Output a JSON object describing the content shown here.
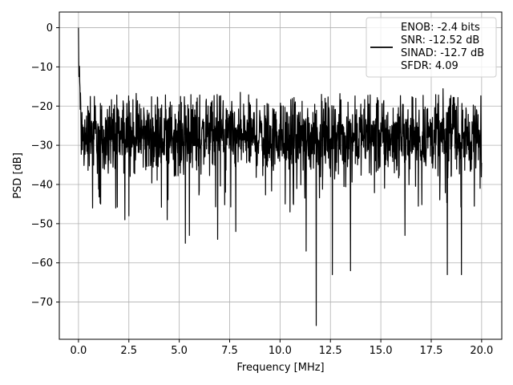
{
  "chart_data": {
    "type": "line",
    "title": "",
    "xlabel": "Frequency [MHz]",
    "ylabel": "PSD [dB]",
    "xlim": [
      -0.95,
      21.0
    ],
    "ylim": [
      -79.5,
      4.0
    ],
    "x_ticks": [
      0.0,
      2.5,
      5.0,
      7.5,
      10.0,
      12.5,
      15.0,
      17.5,
      20.0
    ],
    "x_tick_labels": [
      "0.0",
      "2.5",
      "5.0",
      "7.5",
      "10.0",
      "12.5",
      "15.0",
      "17.5",
      "20.0"
    ],
    "y_ticks": [
      0,
      -10,
      -20,
      -30,
      -40,
      -50,
      -60,
      -70
    ],
    "y_tick_labels": [
      "0",
      "−10",
      "−20",
      "−30",
      "−40",
      "−50",
      "−60",
      "−70"
    ],
    "grid": true,
    "legend_position": "top-right",
    "series": [
      {
        "name": "ENOB: -2.4 bits",
        "color": "#000000",
        "x_range": [
          0.0,
          20.0
        ],
        "peak": {
          "x": 0.0,
          "y": 0.0
        },
        "noise_floor_mean": -28,
        "typical_band": [
          -37,
          -17
        ],
        "notable_dips": [
          {
            "x": 0.7,
            "y": -46
          },
          {
            "x": 1.1,
            "y": -45
          },
          {
            "x": 1.85,
            "y": -46
          },
          {
            "x": 2.3,
            "y": -49
          },
          {
            "x": 2.5,
            "y": -48
          },
          {
            "x": 4.4,
            "y": -49
          },
          {
            "x": 5.3,
            "y": -55
          },
          {
            "x": 5.5,
            "y": -53
          },
          {
            "x": 6.9,
            "y": -54
          },
          {
            "x": 7.8,
            "y": -52
          },
          {
            "x": 10.5,
            "y": -47
          },
          {
            "x": 11.3,
            "y": -57
          },
          {
            "x": 11.8,
            "y": -76
          },
          {
            "x": 12.6,
            "y": -63
          },
          {
            "x": 13.5,
            "y": -62
          },
          {
            "x": 16.2,
            "y": -53
          },
          {
            "x": 18.3,
            "y": -63
          },
          {
            "x": 19.0,
            "y": -63
          }
        ]
      }
    ],
    "legend_entries": [
      "ENOB: -2.4 bits",
      "SNR: -12.52 dB",
      "SINAD: -12.7 dB",
      "SFDR: 4.09"
    ]
  }
}
